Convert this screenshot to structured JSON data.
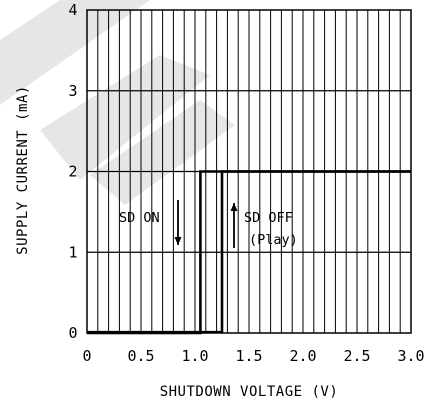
{
  "chart_data": {
    "type": "line",
    "xlabel": "SHUTDOWN VOLTAGE (V)",
    "ylabel": "SUPPLY CURRENT (mA)",
    "xlim": [
      0,
      3.0
    ],
    "ylim": [
      0,
      4
    ],
    "x_ticks": [
      "0",
      "0.5",
      "1.0",
      "1.5",
      "2.0",
      "2.5",
      "3.0"
    ],
    "y_ticks": [
      "0",
      "1",
      "2",
      "3",
      "4"
    ],
    "x_tick_values": [
      0,
      0.5,
      1.0,
      1.5,
      2.0,
      2.5,
      3.0
    ],
    "y_tick_values": [
      0,
      1,
      2,
      3,
      4
    ],
    "minor_x_step": 0.1,
    "grid": true,
    "series": [
      {
        "values_xy": [
          [
            0,
            0
          ],
          [
            1.05,
            0
          ],
          [
            1.05,
            2
          ],
          [
            3.0,
            2
          ]
        ]
      },
      {
        "values_xy": [
          [
            0,
            0.01
          ],
          [
            1.25,
            0.01
          ],
          [
            1.25,
            2
          ],
          [
            3.0,
            2
          ]
        ]
      }
    ],
    "annotations": [
      {
        "text": "SD ON",
        "arrow": "down",
        "x": 0.85,
        "y": 1.25
      },
      {
        "text": "SD OFF",
        "arrow": "up",
        "x": 1.38,
        "y": 1.3
      },
      {
        "text": "(Play)",
        "x": 1.45,
        "y": 1.1
      }
    ],
    "colors": {
      "line": "#000000",
      "grid": "#000000",
      "watermark": "#e6e6e6"
    }
  }
}
